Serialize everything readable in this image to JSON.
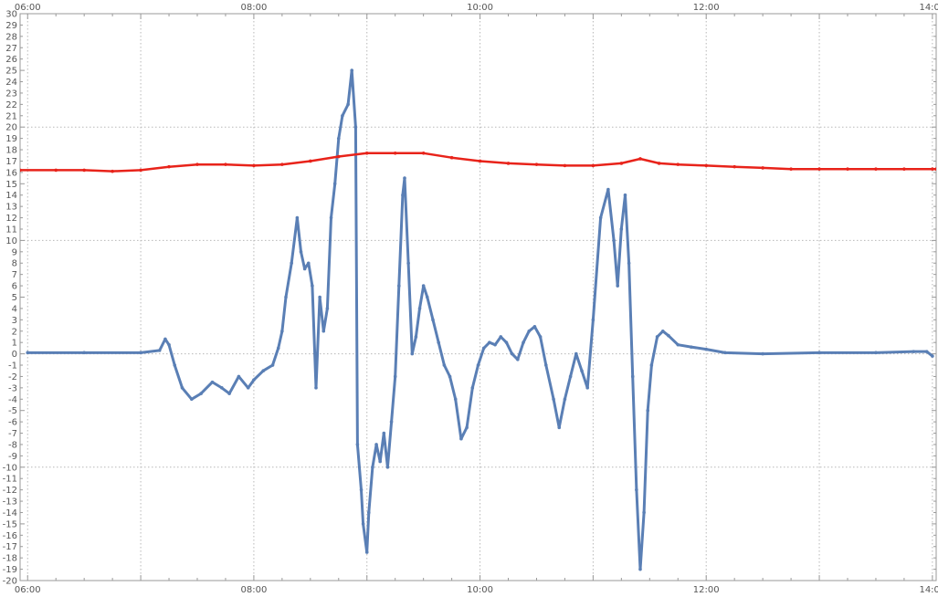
{
  "chart_data": {
    "type": "scatter",
    "title": "",
    "xlabel": "",
    "ylabel": "",
    "xlim": [
      "05:56",
      "14:02"
    ],
    "ylim": [
      -20,
      30
    ],
    "x_ticks_major": [
      "06:00",
      "08:00",
      "10:00",
      "12:00",
      "14:00"
    ],
    "y_ticks": [
      -20,
      -19,
      -18,
      -17,
      -16,
      -15,
      -14,
      -13,
      -12,
      -11,
      -10,
      -9,
      -8,
      -7,
      -6,
      -5,
      -4,
      -3,
      -2,
      -1,
      0,
      1,
      2,
      3,
      4,
      5,
      6,
      7,
      8,
      9,
      10,
      11,
      12,
      13,
      14,
      15,
      16,
      17,
      18,
      19,
      20,
      21,
      22,
      23,
      24,
      25,
      26,
      27,
      28,
      29,
      30
    ],
    "grid": true,
    "legend": "none",
    "series": [
      {
        "color": "#5a7fb5",
        "points": [
          [
            "06:00",
            0.1
          ],
          [
            "06:30",
            0.1
          ],
          [
            "07:00",
            0.1
          ],
          [
            "07:10",
            0.3
          ],
          [
            "07:13",
            1.3
          ],
          [
            "07:15",
            0.8
          ],
          [
            "07:18",
            -1.0
          ],
          [
            "07:22",
            -3.0
          ],
          [
            "07:27",
            -4.0
          ],
          [
            "07:32",
            -3.5
          ],
          [
            "07:38",
            -2.5
          ],
          [
            "07:43",
            -3.0
          ],
          [
            "07:47",
            -3.5
          ],
          [
            "07:52",
            -2.0
          ],
          [
            "07:57",
            -3.0
          ],
          [
            "08:00",
            -2.3
          ],
          [
            "08:05",
            -1.5
          ],
          [
            "08:10",
            -1.0
          ],
          [
            "08:13",
            0.5
          ],
          [
            "08:15",
            2.0
          ],
          [
            "08:17",
            5.0
          ],
          [
            "08:20",
            8.0
          ],
          [
            "08:23",
            12.0
          ],
          [
            "08:25",
            9.0
          ],
          [
            "08:27",
            7.5
          ],
          [
            "08:29",
            8.0
          ],
          [
            "08:31",
            6.0
          ],
          [
            "08:33",
            -3.0
          ],
          [
            "08:35",
            5.0
          ],
          [
            "08:37",
            2.0
          ],
          [
            "08:39",
            4.0
          ],
          [
            "08:41",
            12.0
          ],
          [
            "08:43",
            15.0
          ],
          [
            "08:45",
            19.0
          ],
          [
            "08:47",
            21.0
          ],
          [
            "08:50",
            22.0
          ],
          [
            "08:52",
            25.0
          ],
          [
            "08:54",
            20.0
          ],
          [
            "08:55",
            -8.0
          ],
          [
            "08:57",
            -12.0
          ],
          [
            "08:58",
            -15.0
          ],
          [
            "09:00",
            -17.5
          ],
          [
            "09:01",
            -14.0
          ],
          [
            "09:03",
            -10.0
          ],
          [
            "09:05",
            -8.0
          ],
          [
            "09:07",
            -9.5
          ],
          [
            "09:09",
            -7.0
          ],
          [
            "09:11",
            -10.0
          ],
          [
            "09:13",
            -6.0
          ],
          [
            "09:15",
            -2.0
          ],
          [
            "09:17",
            6.0
          ],
          [
            "09:19",
            14.0
          ],
          [
            "09:20",
            15.5
          ],
          [
            "09:22",
            8.0
          ],
          [
            "09:24",
            0.0
          ],
          [
            "09:26",
            1.5
          ],
          [
            "09:28",
            4.0
          ],
          [
            "09:30",
            6.0
          ],
          [
            "09:32",
            5.0
          ],
          [
            "09:35",
            3.0
          ],
          [
            "09:38",
            1.0
          ],
          [
            "09:41",
            -1.0
          ],
          [
            "09:44",
            -2.0
          ],
          [
            "09:47",
            -4.0
          ],
          [
            "09:50",
            -7.5
          ],
          [
            "09:53",
            -6.5
          ],
          [
            "09:56",
            -3.0
          ],
          [
            "09:59",
            -1.0
          ],
          [
            "10:02",
            0.5
          ],
          [
            "10:05",
            1.0
          ],
          [
            "10:08",
            0.8
          ],
          [
            "10:11",
            1.5
          ],
          [
            "10:14",
            1.0
          ],
          [
            "10:17",
            0.0
          ],
          [
            "10:20",
            -0.5
          ],
          [
            "10:23",
            1.0
          ],
          [
            "10:26",
            2.0
          ],
          [
            "10:29",
            2.4
          ],
          [
            "10:32",
            1.5
          ],
          [
            "10:35",
            -1.0
          ],
          [
            "10:39",
            -4.0
          ],
          [
            "10:42",
            -6.5
          ],
          [
            "10:45",
            -4.0
          ],
          [
            "10:48",
            -2.0
          ],
          [
            "10:51",
            0.0
          ],
          [
            "10:54",
            -1.5
          ],
          [
            "10:57",
            -3.0
          ],
          [
            "11:00",
            3.0
          ],
          [
            "11:04",
            12.0
          ],
          [
            "11:08",
            14.5
          ],
          [
            "11:11",
            10.0
          ],
          [
            "11:13",
            6.0
          ],
          [
            "11:15",
            11.0
          ],
          [
            "11:17",
            14.0
          ],
          [
            "11:19",
            8.0
          ],
          [
            "11:21",
            -2.0
          ],
          [
            "11:23",
            -12.0
          ],
          [
            "11:25",
            -19.0
          ],
          [
            "11:27",
            -14.0
          ],
          [
            "11:29",
            -5.0
          ],
          [
            "11:31",
            -1.0
          ],
          [
            "11:34",
            1.5
          ],
          [
            "11:37",
            2.0
          ],
          [
            "11:40",
            1.6
          ],
          [
            "11:45",
            0.8
          ],
          [
            "11:52",
            0.6
          ],
          [
            "12:00",
            0.4
          ],
          [
            "12:10",
            0.1
          ],
          [
            "12:30",
            0.0
          ],
          [
            "13:00",
            0.1
          ],
          [
            "13:30",
            0.1
          ],
          [
            "13:50",
            0.2
          ],
          [
            "13:57",
            0.2
          ],
          [
            "14:00",
            -0.2
          ]
        ]
      },
      {
        "color": "#e8231a",
        "points": [
          [
            "05:56",
            16.2
          ],
          [
            "06:15",
            16.2
          ],
          [
            "06:30",
            16.2
          ],
          [
            "06:45",
            16.1
          ],
          [
            "07:00",
            16.2
          ],
          [
            "07:15",
            16.5
          ],
          [
            "07:30",
            16.7
          ],
          [
            "07:45",
            16.7
          ],
          [
            "08:00",
            16.6
          ],
          [
            "08:15",
            16.7
          ],
          [
            "08:30",
            17.0
          ],
          [
            "08:45",
            17.4
          ],
          [
            "09:00",
            17.7
          ],
          [
            "09:15",
            17.7
          ],
          [
            "09:30",
            17.7
          ],
          [
            "09:45",
            17.3
          ],
          [
            "10:00",
            17.0
          ],
          [
            "10:15",
            16.8
          ],
          [
            "10:30",
            16.7
          ],
          [
            "10:45",
            16.6
          ],
          [
            "11:00",
            16.6
          ],
          [
            "11:15",
            16.8
          ],
          [
            "11:25",
            17.2
          ],
          [
            "11:35",
            16.8
          ],
          [
            "11:45",
            16.7
          ],
          [
            "12:00",
            16.6
          ],
          [
            "12:15",
            16.5
          ],
          [
            "12:30",
            16.4
          ],
          [
            "12:45",
            16.3
          ],
          [
            "13:00",
            16.3
          ],
          [
            "13:15",
            16.3
          ],
          [
            "13:30",
            16.3
          ],
          [
            "13:45",
            16.3
          ],
          [
            "14:00",
            16.3
          ],
          [
            "14:02",
            16.3
          ]
        ]
      }
    ]
  }
}
